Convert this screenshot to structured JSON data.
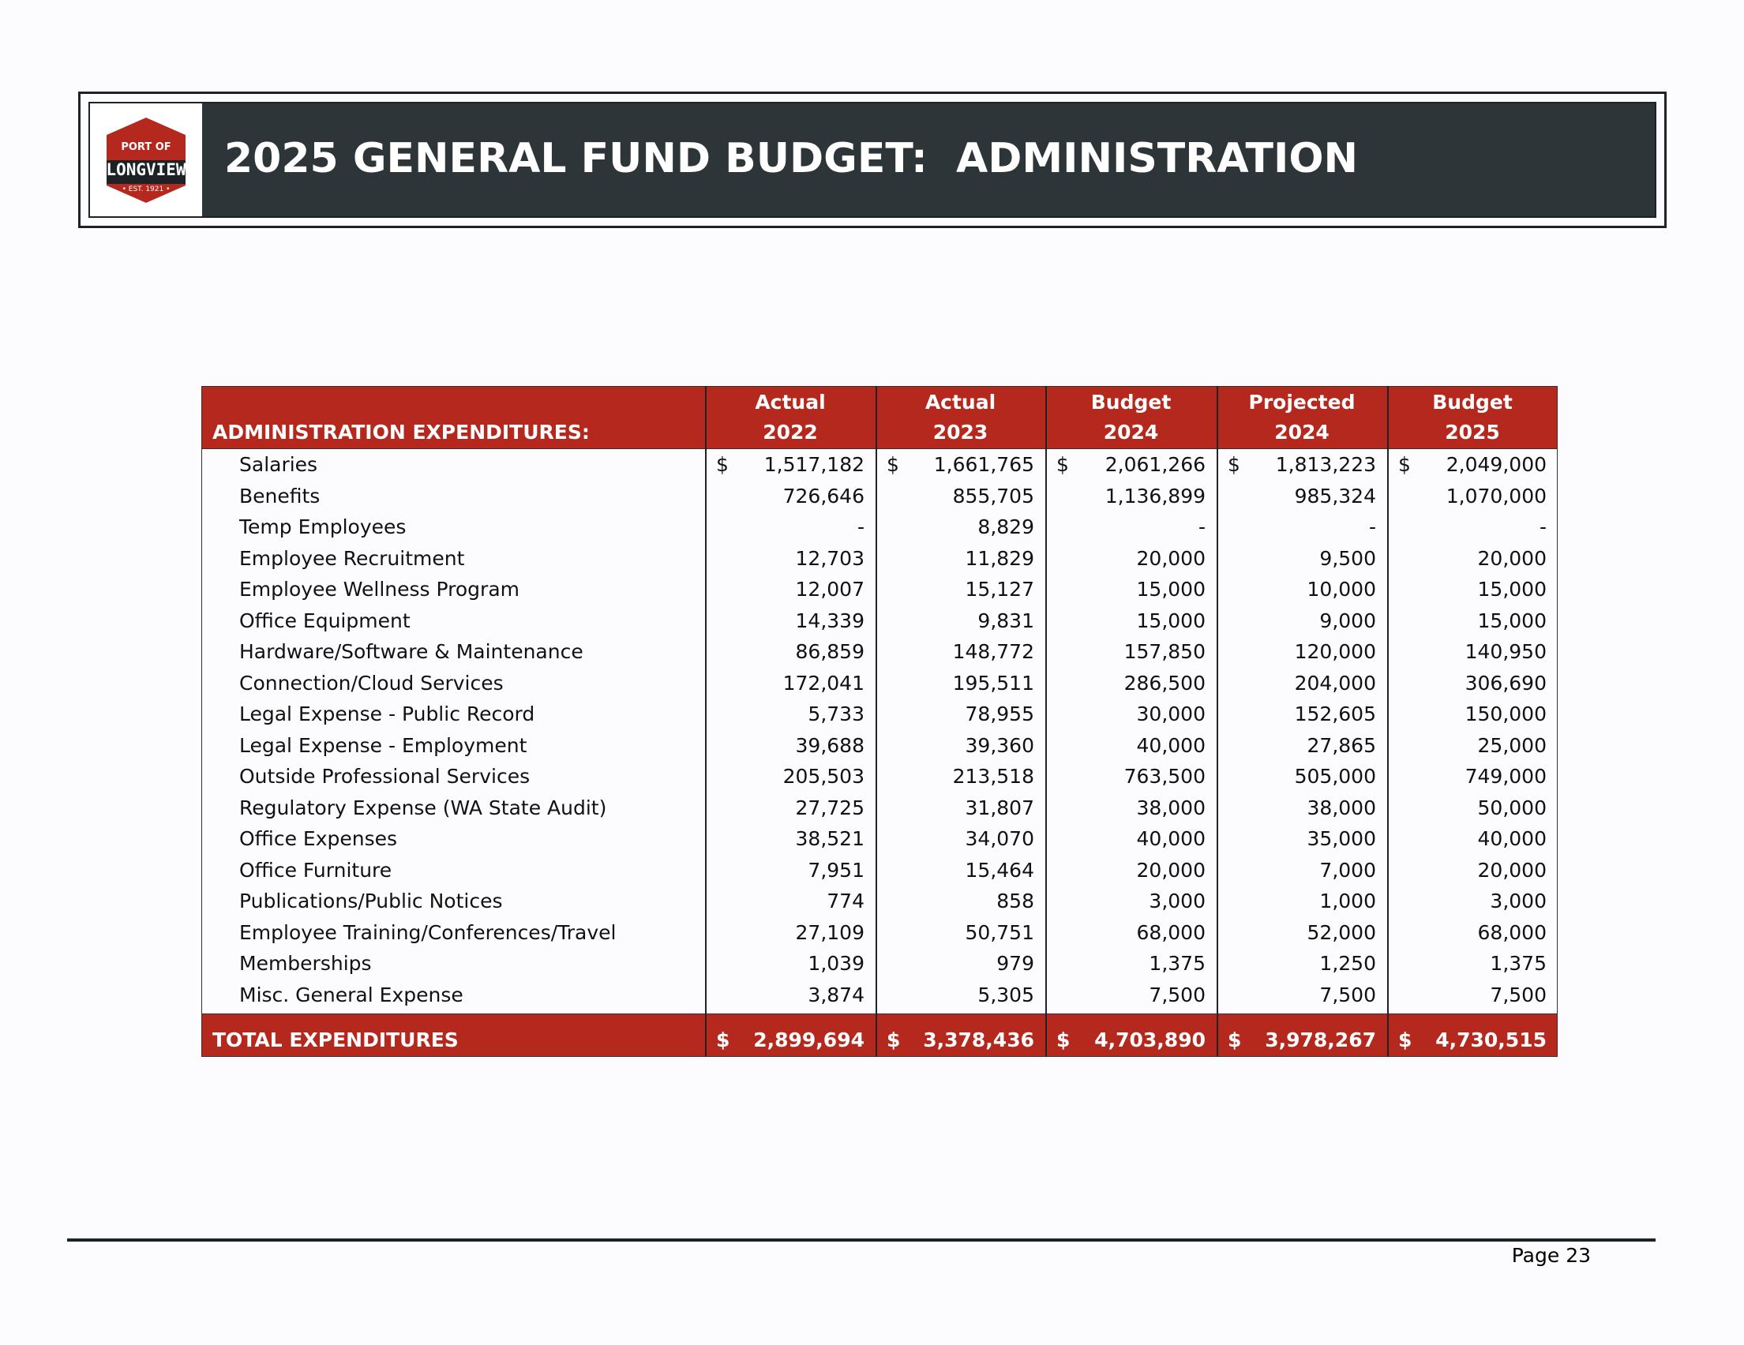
{
  "header": {
    "title": "2025 GENERAL FUND BUDGET:  ADMINISTRATION",
    "logo": {
      "top": "PORT OF",
      "name": "LONGVIEW",
      "bottom": "• EST. 1921 •"
    }
  },
  "table": {
    "columns": [
      [
        "ADMINISTRATION EXPENDITURES:"
      ],
      [
        "Actual",
        "2022"
      ],
      [
        "Actual",
        "2023"
      ],
      [
        "Budget",
        "2024"
      ],
      [
        "Projected",
        "2024"
      ],
      [
        "Budget",
        "2025"
      ]
    ],
    "rows": [
      [
        "Salaries",
        {
          "currency": "$",
          "amount": "1,517,182"
        },
        {
          "currency": "$",
          "amount": "1,661,765"
        },
        {
          "currency": "$",
          "amount": "2,061,266"
        },
        {
          "currency": "$",
          "amount": "1,813,223"
        },
        {
          "currency": "$",
          "amount": "2,049,000"
        }
      ],
      [
        "Benefits",
        "726,646",
        "855,705",
        "1,136,899",
        "985,324",
        "1,070,000"
      ],
      [
        "Temp Employees",
        "-",
        "8,829",
        "-",
        "-",
        "-"
      ],
      [
        "Employee Recruitment",
        "12,703",
        "11,829",
        "20,000",
        "9,500",
        "20,000"
      ],
      [
        "Employee Wellness Program",
        "12,007",
        "15,127",
        "15,000",
        "10,000",
        "15,000"
      ],
      [
        "Office Equipment",
        "14,339",
        "9,831",
        "15,000",
        "9,000",
        "15,000"
      ],
      [
        "Hardware/Software & Maintenance",
        "86,859",
        "148,772",
        "157,850",
        "120,000",
        "140,950"
      ],
      [
        "Connection/Cloud Services",
        "172,041",
        "195,511",
        "286,500",
        "204,000",
        "306,690"
      ],
      [
        "Legal Expense - Public Record",
        "5,733",
        "78,955",
        "30,000",
        "152,605",
        "150,000"
      ],
      [
        "Legal Expense - Employment",
        "39,688",
        "39,360",
        "40,000",
        "27,865",
        "25,000"
      ],
      [
        "Outside Professional Services",
        "205,503",
        "213,518",
        "763,500",
        "505,000",
        "749,000"
      ],
      [
        "Regulatory Expense (WA State Audit)",
        "27,725",
        "31,807",
        "38,000",
        "38,000",
        "50,000"
      ],
      [
        "Office Expenses",
        "38,521",
        "34,070",
        "40,000",
        "35,000",
        "40,000"
      ],
      [
        "Office Furniture",
        "7,951",
        "15,464",
        "20,000",
        "7,000",
        "20,000"
      ],
      [
        "Publications/Public Notices",
        "774",
        "858",
        "3,000",
        "1,000",
        "3,000"
      ],
      [
        "Employee Training/Conferences/Travel",
        "27,109",
        "50,751",
        "68,000",
        "52,000",
        "68,000"
      ],
      [
        "Memberships",
        "1,039",
        "979",
        "1,375",
        "1,250",
        "1,375"
      ],
      [
        "Misc. General Expense",
        "3,874",
        "5,305",
        "7,500",
        "7,500",
        "7,500"
      ]
    ],
    "total": [
      "TOTAL EXPENDITURES",
      {
        "currency": "$",
        "amount": "2,899,694"
      },
      {
        "currency": "$",
        "amount": "3,378,436"
      },
      {
        "currency": "$",
        "amount": "4,703,890"
      },
      {
        "currency": "$",
        "amount": "3,978,267"
      },
      {
        "currency": "$",
        "amount": "4,730,515"
      }
    ]
  },
  "footer": {
    "page": "Page 23"
  }
}
